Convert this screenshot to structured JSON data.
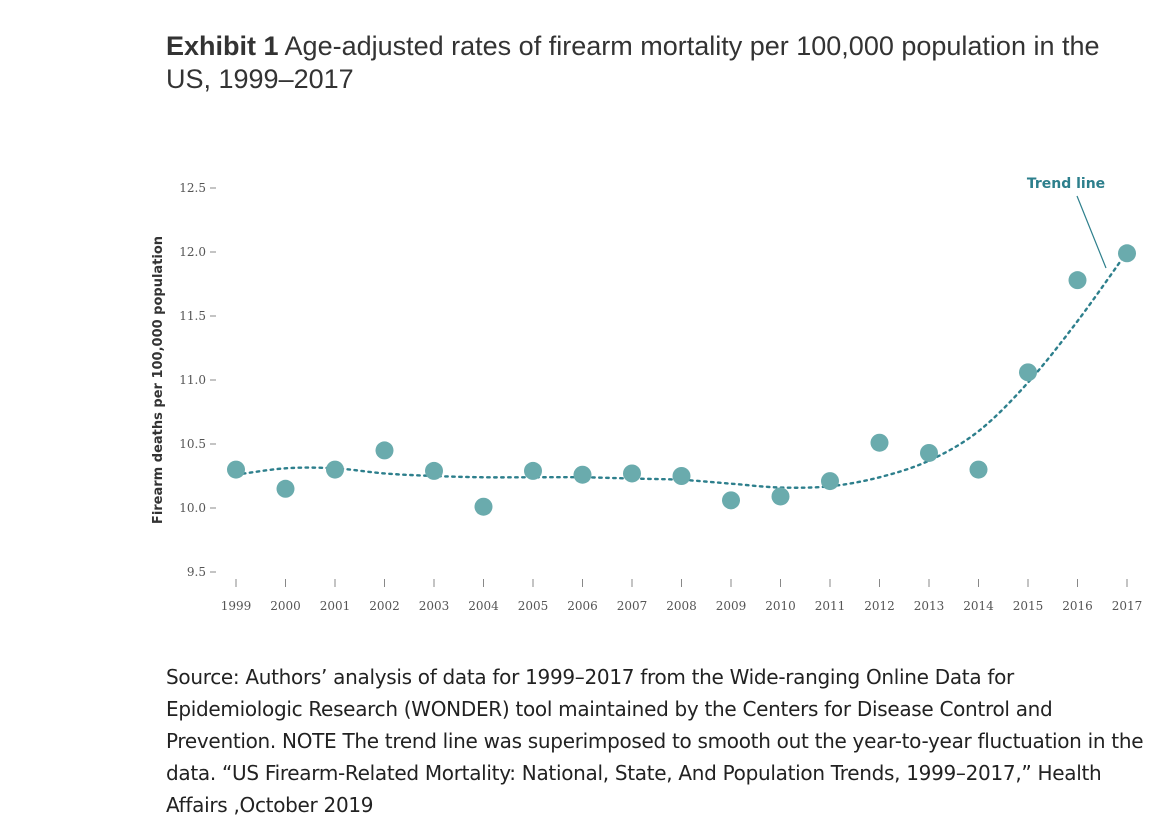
{
  "title": {
    "bold": "Exhibit 1",
    "text": " Age-adjusted rates of firearm mortality per 100,000 population in the US, 1999–2017"
  },
  "chart_data": {
    "type": "scatter",
    "title": "Exhibit 1 Age-adjusted rates of firearm mortality per 100,000 population in the US, 1999–2017",
    "xlabel": "",
    "ylabel": "Firearm deaths per 100,000 population",
    "ylim": [
      9.5,
      12.5
    ],
    "yticks": [
      "9.5",
      "10.0",
      "10.5",
      "11.0",
      "11.5",
      "12.0",
      "12.5"
    ],
    "x": [
      "1999",
      "2000",
      "2001",
      "2002",
      "2003",
      "2004",
      "2005",
      "2006",
      "2007",
      "2008",
      "2009",
      "2010",
      "2011",
      "2012",
      "2013",
      "2014",
      "2015",
      "2016",
      "2017"
    ],
    "values": [
      10.3,
      10.15,
      10.3,
      10.45,
      10.29,
      10.01,
      10.29,
      10.26,
      10.27,
      10.25,
      10.06,
      10.09,
      10.21,
      10.51,
      10.43,
      10.3,
      11.06,
      11.78,
      11.99
    ],
    "trend_line": {
      "label": "Trend line",
      "values": [
        10.26,
        10.31,
        10.31,
        10.27,
        10.25,
        10.24,
        10.24,
        10.24,
        10.23,
        10.22,
        10.19,
        10.16,
        10.17,
        10.24,
        10.37,
        10.6,
        10.98,
        11.46,
        12.0
      ]
    },
    "grid": false,
    "colors": {
      "points": "#6aabad",
      "trend": "#2d7f8c"
    }
  },
  "source": "Source: Authors’ analysis of data for 1999–2017 from the Wide-ranging Online Data for Epidemiologic Research (WONDER) tool maintained by the Centers for Disease Control and Prevention. NOTE The trend line was superimposed to smooth out the year-to-year fluctuation in the data. “US Firearm-Related Mortality: National, State, And Population Trends, 1999–2017,” Health Affairs ,October 2019"
}
